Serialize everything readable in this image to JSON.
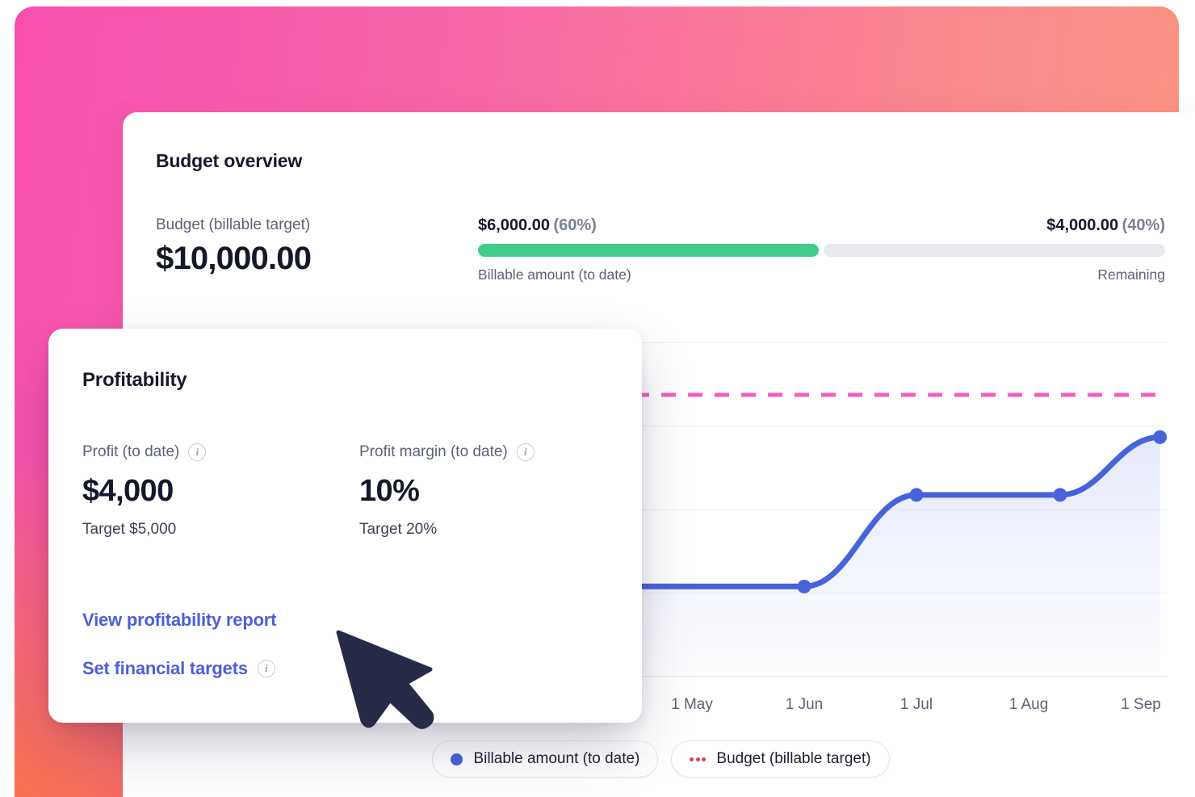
{
  "budget_overview": {
    "title": "Budget overview",
    "budget_label": "Budget (billable target)",
    "budget_value": "$10,000.00",
    "billable": {
      "amount": "$6,000.00",
      "percent": "(60%)",
      "label": "Billable amount (to date)"
    },
    "remaining": {
      "amount": "$4,000.00",
      "percent": "(40%)",
      "label": "Remaining"
    }
  },
  "profitability": {
    "title": "Profitability",
    "profit": {
      "label": "Profit (to date)",
      "value": "$4,000",
      "target": "Target $5,000"
    },
    "margin": {
      "label": "Profit margin (to date)",
      "value": "10%",
      "target": "Target 20%"
    },
    "links": {
      "report": "View profitability report",
      "targets": "Set financial targets"
    },
    "info_icon_glyph": "i"
  },
  "chart_data": {
    "type": "area",
    "title": "",
    "xlabel": "",
    "ylabel": "",
    "x_ticks": [
      "1 May",
      "1 Jun",
      "1 Jul",
      "1 Aug",
      "1 Sep"
    ],
    "ylim": [
      0,
      11900
    ],
    "grid": true,
    "legend_position": "bottom",
    "budget_line": {
      "label": "Budget (billable target)",
      "value": 10000,
      "color": "#F25FBF",
      "style": "dashed"
    },
    "series": [
      {
        "name": "Billable amount (to date)",
        "color": "#4763DC",
        "points": [
          {
            "month": -3.8,
            "value": 3200,
            "marker": false
          },
          {
            "month": 2,
            "value": 3200,
            "marker": true
          },
          {
            "month": 3,
            "value": 6450,
            "marker": true
          },
          {
            "month": 4.28,
            "value": 6450,
            "marker": true
          },
          {
            "month": 5.17,
            "value": 8500,
            "marker": true
          }
        ]
      }
    ],
    "legend": [
      {
        "label": "Billable amount (to date)",
        "marker": "dot",
        "color": "#4763DC"
      },
      {
        "label": "Budget (billable target)",
        "marker": "dotted-line",
        "color": "#D64550"
      }
    ]
  },
  "colors": {
    "accent_blue": "#4763DC",
    "link_blue": "#4C5FD7",
    "green": "#41CD8E",
    "track_gray": "#E9EAEE",
    "pink_dash": "#F25FBF",
    "legend_red": "#D64550",
    "cursor_navy": "#272B47",
    "gradient_pink": "#F74FB0",
    "gradient_salmon": "#FB957E",
    "gradient_orange": "#F9793F"
  }
}
